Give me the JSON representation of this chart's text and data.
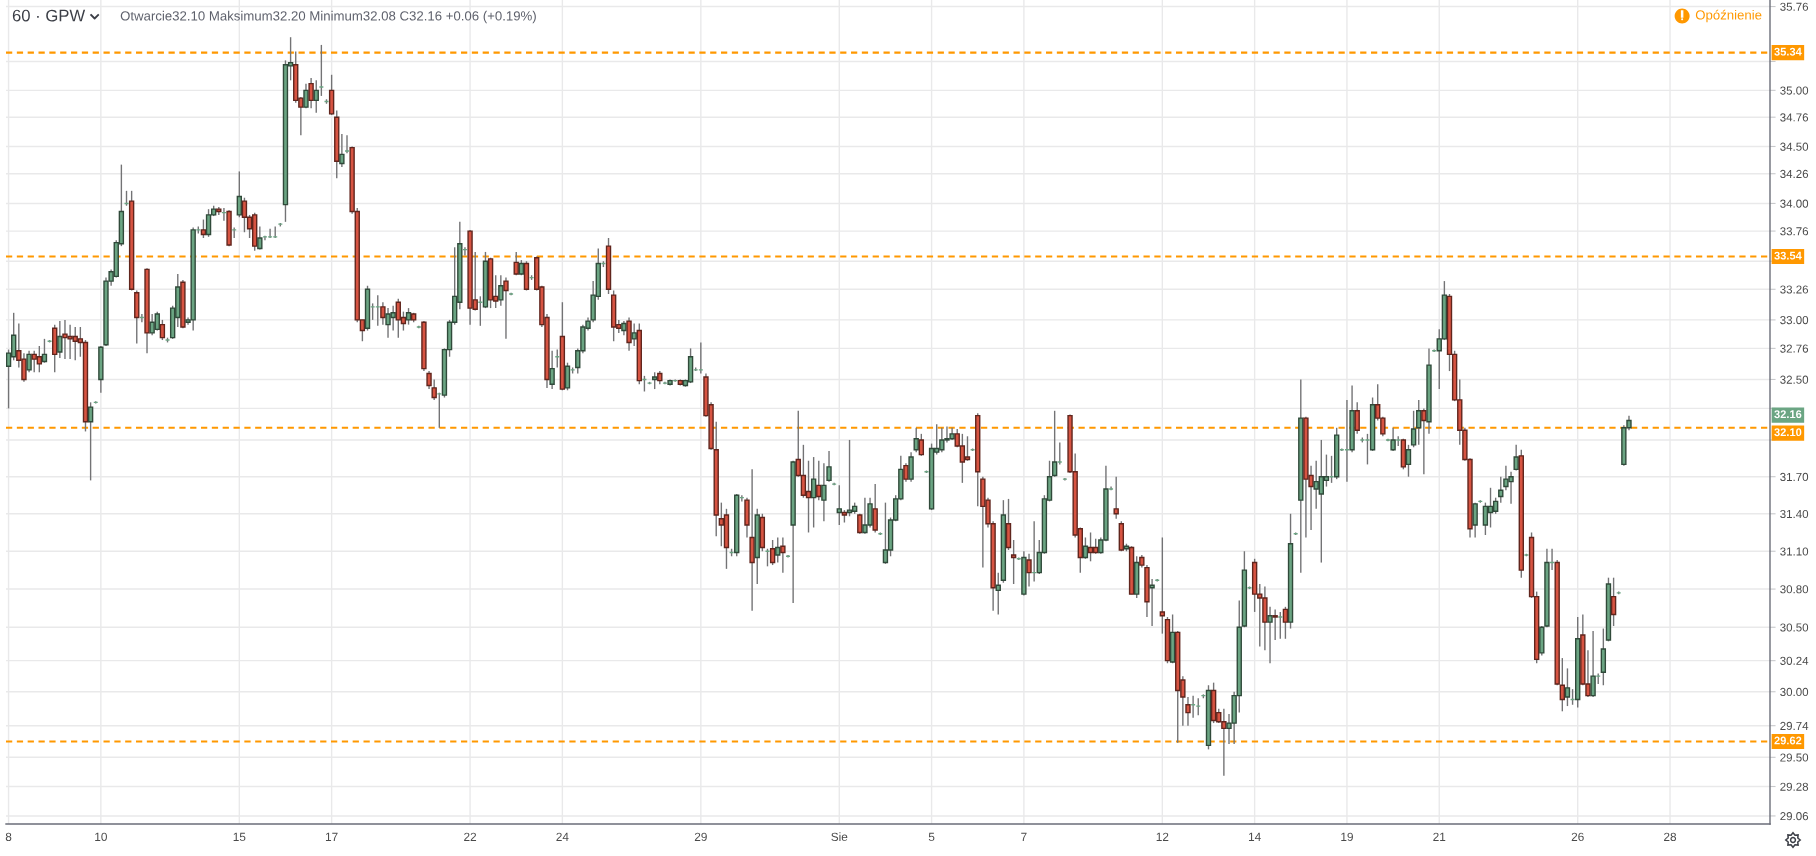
{
  "chart_data": {
    "type": "candlestick",
    "title": "60 · GPW",
    "subtitle": "Otwarcie32.10 Maksimum32.20 Minimum32.08 C32.16 +0.06 (+0.19%)",
    "annotations": [
      "Opóźnienie",
      "32.16"
    ],
    "categories": [
      "8",
      null,
      null,
      null,
      null,
      null,
      null,
      null,
      null,
      null,
      null,
      null,
      null,
      null,
      null,
      null,
      null,
      null,
      "10",
      null,
      null,
      null,
      null,
      null,
      null,
      null,
      null,
      null,
      null,
      null,
      null,
      null,
      null,
      null,
      null,
      null,
      null,
      null,
      null,
      null,
      null,
      null,
      null,
      null,
      null,
      "15",
      null,
      null,
      null,
      null,
      null,
      null,
      null,
      null,
      null,
      null,
      null,
      null,
      null,
      null,
      null,
      null,
      null,
      "17",
      null,
      null,
      null,
      null,
      null,
      null,
      null,
      null,
      null,
      null,
      null,
      null,
      null,
      null,
      null,
      null,
      null,
      null,
      null,
      null,
      null,
      null,
      null,
      null,
      null,
      null,
      "22",
      null,
      null,
      null,
      null,
      null,
      null,
      null,
      null,
      null,
      null,
      null,
      null,
      null,
      null,
      null,
      null,
      null,
      "24",
      null,
      null,
      null,
      null,
      null,
      null,
      null,
      null,
      null,
      null,
      null,
      null,
      null,
      null,
      null,
      null,
      null,
      null,
      null,
      null,
      null,
      null,
      null,
      null,
      null,
      null,
      "29",
      null,
      null,
      null,
      null,
      null,
      null,
      null,
      null,
      null,
      null,
      null,
      null,
      null,
      null,
      null,
      null,
      null,
      null,
      null,
      null,
      null,
      null,
      null,
      null,
      null,
      null,
      "Sie",
      null,
      null,
      null,
      null,
      null,
      null,
      null,
      null,
      null,
      null,
      null,
      null,
      null,
      null,
      null,
      null,
      null,
      "5",
      null,
      null,
      null,
      null,
      null,
      null,
      null,
      null,
      null,
      null,
      null,
      null,
      null,
      null,
      null,
      null,
      null,
      "7",
      null,
      null,
      null,
      null,
      null,
      null,
      null,
      null,
      null,
      null,
      null,
      null,
      null,
      null,
      null,
      null,
      null,
      null,
      null,
      null,
      null,
      null,
      null,
      null,
      null,
      null,
      "12",
      null,
      null,
      null,
      null,
      null,
      null,
      null,
      null,
      null,
      null,
      null,
      null,
      null,
      null,
      null,
      null,
      null,
      "14",
      null,
      null,
      null,
      null,
      null,
      null,
      null,
      null,
      null,
      null,
      null,
      null,
      null,
      null,
      null,
      null,
      null,
      "19",
      null,
      null,
      null,
      null,
      null,
      null,
      null,
      null,
      null,
      null,
      null,
      null,
      null,
      null,
      null,
      null,
      null,
      "21",
      null,
      null,
      null,
      null,
      null,
      null,
      null,
      null,
      null,
      null,
      null,
      null,
      null,
      null,
      null,
      null,
      null,
      null,
      null,
      null,
      null,
      null,
      null,
      null,
      null,
      null,
      "26",
      null,
      null,
      null,
      null,
      null,
      null,
      null,
      null,
      null,
      null,
      null,
      null,
      null,
      null,
      null,
      null,
      null,
      "28",
      null,
      null,
      null,
      null,
      null,
      null,
      null,
      null,
      null,
      null,
      null,
      null,
      null,
      null,
      null,
      null,
      null,
      null,
      null
    ],
    "ohlc": [
      [
        32.61,
        32.75,
        32.26,
        32.72
      ],
      [
        32.69,
        33.06,
        32.66,
        32.87
      ],
      [
        32.74,
        32.97,
        32.6,
        32.66
      ],
      [
        32.67,
        32.72,
        32.48,
        32.5
      ],
      [
        32.58,
        32.74,
        32.56,
        32.71
      ],
      [
        32.71,
        32.74,
        32.56,
        32.67
      ],
      [
        32.69,
        32.78,
        32.56,
        32.63
      ],
      [
        32.65,
        32.84,
        32.64,
        32.71
      ],
      [
        32.82,
        32.83,
        32.81,
        32.82
      ],
      [
        32.93,
        32.96,
        32.56,
        32.71
      ],
      [
        32.73,
        32.99,
        32.68,
        32.86
      ],
      [
        32.88,
        33.0,
        32.67,
        32.85
      ],
      [
        32.86,
        32.96,
        32.67,
        32.84
      ],
      [
        32.86,
        32.94,
        32.66,
        32.82
      ],
      [
        32.84,
        32.94,
        32.69,
        32.81
      ],
      [
        32.81,
        32.83,
        32.07,
        32.15
      ],
      [
        32.15,
        32.31,
        31.67,
        32.27
      ],
      [
        32.31,
        32.32,
        32.3,
        32.31
      ],
      [
        32.5,
        32.78,
        32.39,
        32.77
      ],
      [
        32.79,
        33.36,
        32.78,
        33.33
      ],
      [
        33.33,
        33.43,
        33.29,
        33.41
      ],
      [
        33.37,
        33.68,
        33.36,
        33.66
      ],
      [
        33.65,
        34.34,
        33.63,
        33.93
      ],
      [
        34.0,
        34.11,
        33.98,
        34.0
      ],
      [
        34.02,
        34.11,
        33.25,
        33.26
      ],
      [
        33.23,
        33.25,
        32.8,
        33.02
      ],
      [
        33.02,
        33.05,
        32.98,
        33.02
      ],
      [
        33.43,
        33.44,
        32.72,
        32.89
      ],
      [
        32.89,
        33.05,
        32.87,
        32.98
      ],
      [
        32.92,
        33.07,
        32.91,
        33.05
      ],
      [
        32.96,
        33.0,
        32.83,
        32.85
      ],
      [
        32.83,
        32.85,
        32.81,
        32.83
      ],
      [
        32.85,
        33.12,
        32.84,
        33.1
      ],
      [
        33.02,
        33.39,
        32.94,
        33.28
      ],
      [
        33.32,
        33.34,
        32.93,
        32.94
      ],
      [
        32.98,
        33.02,
        32.96,
        33.0
      ],
      [
        33.0,
        33.79,
        32.91,
        33.77
      ],
      [
        33.77,
        33.8,
        33.74,
        33.77
      ],
      [
        33.77,
        33.86,
        33.7,
        33.73
      ],
      [
        33.73,
        33.95,
        33.71,
        33.9
      ],
      [
        33.9,
        33.98,
        33.89,
        33.95
      ],
      [
        33.95,
        33.97,
        33.9,
        33.93
      ],
      [
        33.92,
        33.96,
        33.85,
        33.92
      ],
      [
        33.93,
        33.94,
        33.63,
        33.64
      ],
      [
        33.77,
        33.79,
        33.7,
        33.77
      ],
      [
        33.9,
        34.28,
        33.88,
        34.06
      ],
      [
        34.02,
        34.05,
        33.75,
        33.88
      ],
      [
        33.88,
        33.9,
        33.7,
        33.78
      ],
      [
        33.9,
        33.92,
        33.59,
        33.63
      ],
      [
        33.61,
        33.8,
        33.6,
        33.7
      ],
      [
        33.71,
        33.72,
        33.68,
        33.71
      ],
      [
        33.71,
        33.78,
        33.7,
        33.71
      ],
      [
        33.71,
        33.8,
        33.7,
        33.71
      ],
      [
        33.82,
        33.83,
        33.8,
        33.82
      ],
      [
        33.99,
        35.27,
        33.84,
        35.23
      ],
      [
        35.22,
        35.48,
        35.09,
        35.25
      ],
      [
        35.23,
        35.35,
        34.89,
        34.91
      ],
      [
        34.93,
        34.94,
        34.6,
        34.85
      ],
      [
        34.85,
        35.06,
        34.84,
        35.0
      ],
      [
        35.06,
        35.11,
        34.84,
        34.91
      ],
      [
        34.91,
        35.09,
        34.8,
        35.0
      ],
      [
        35.03,
        35.41,
        34.95,
        35.03
      ],
      [
        34.9,
        34.92,
        34.88,
        34.9
      ],
      [
        35.0,
        35.14,
        34.78,
        34.79
      ],
      [
        34.76,
        34.82,
        34.22,
        34.37
      ],
      [
        34.35,
        34.61,
        34.32,
        34.43
      ],
      [
        34.46,
        34.6,
        34.44,
        34.46
      ],
      [
        34.49,
        34.5,
        33.91,
        33.93
      ],
      [
        33.93,
        33.96,
        32.98,
        33.0
      ],
      [
        33.0,
        33.0,
        32.82,
        32.91
      ],
      [
        32.93,
        33.29,
        32.91,
        33.26
      ],
      [
        33.11,
        33.14,
        33.0,
        33.11
      ],
      [
        33.11,
        33.21,
        32.95,
        33.11
      ],
      [
        33.11,
        33.15,
        32.96,
        33.02
      ],
      [
        32.96,
        33.1,
        32.85,
        33.05
      ],
      [
        33.02,
        33.12,
        32.91,
        33.06
      ],
      [
        33.15,
        33.18,
        32.85,
        33.0
      ],
      [
        33.02,
        33.07,
        32.91,
        32.97
      ],
      [
        33.0,
        33.1,
        32.96,
        33.06
      ],
      [
        33.05,
        33.06,
        32.98,
        33.0
      ],
      [
        32.94,
        32.95,
        32.93,
        32.94
      ],
      [
        32.98,
        32.99,
        32.57,
        32.59
      ],
      [
        32.55,
        32.57,
        32.42,
        32.45
      ],
      [
        32.43,
        32.5,
        32.33,
        32.35
      ],
      [
        32.38,
        32.39,
        32.1,
        32.38
      ],
      [
        32.37,
        32.76,
        32.35,
        32.75
      ],
      [
        32.75,
        33.0,
        32.69,
        32.98
      ],
      [
        32.98,
        33.62,
        32.96,
        33.2
      ],
      [
        33.15,
        33.84,
        33.09,
        33.65
      ],
      [
        33.6,
        33.62,
        33.55,
        33.6
      ],
      [
        33.76,
        33.77,
        32.96,
        33.1
      ],
      [
        33.17,
        33.58,
        33.08,
        33.09
      ],
      [
        33.15,
        33.2,
        32.95,
        33.15
      ],
      [
        33.11,
        33.58,
        33.1,
        33.5
      ],
      [
        33.52,
        33.53,
        33.1,
        33.17
      ],
      [
        33.2,
        33.38,
        33.1,
        33.16
      ],
      [
        33.17,
        33.38,
        33.12,
        33.29
      ],
      [
        33.33,
        33.36,
        32.84,
        33.25
      ],
      [
        33.22,
        33.23,
        33.21,
        33.22
      ],
      [
        33.49,
        33.58,
        33.38,
        33.39
      ],
      [
        33.39,
        33.51,
        33.38,
        33.48
      ],
      [
        33.48,
        33.5,
        33.25,
        33.26
      ],
      [
        33.36,
        33.38,
        33.34,
        33.36
      ],
      [
        33.53,
        33.54,
        33.25,
        33.26
      ],
      [
        33.28,
        33.29,
        32.94,
        32.96
      ],
      [
        33.02,
        33.05,
        32.43,
        32.5
      ],
      [
        32.46,
        32.74,
        32.42,
        32.59
      ],
      [
        32.69,
        32.75,
        32.6,
        32.69
      ],
      [
        32.86,
        33.15,
        32.41,
        32.42
      ],
      [
        32.43,
        32.64,
        32.41,
        32.61
      ],
      [
        32.58,
        32.6,
        32.55,
        32.58
      ],
      [
        32.6,
        32.76,
        32.55,
        32.74
      ],
      [
        32.74,
        32.96,
        32.72,
        32.94
      ],
      [
        32.93,
        33.02,
        32.91,
        32.99
      ],
      [
        33.0,
        33.33,
        32.98,
        33.21
      ],
      [
        33.2,
        33.61,
        33.17,
        33.48
      ],
      [
        33.48,
        33.5,
        33.45,
        33.48
      ],
      [
        33.63,
        33.7,
        33.22,
        33.26
      ],
      [
        33.21,
        33.25,
        32.82,
        32.94
      ],
      [
        32.96,
        33.0,
        32.89,
        32.93
      ],
      [
        32.91,
        32.99,
        32.87,
        32.97
      ],
      [
        32.99,
        33.02,
        32.74,
        32.81
      ],
      [
        32.84,
        32.97,
        32.78,
        32.89
      ],
      [
        32.91,
        32.97,
        32.46,
        32.49
      ],
      [
        32.5,
        32.53,
        32.4,
        32.5
      ],
      [
        32.47,
        32.48,
        32.46,
        32.47
      ],
      [
        32.5,
        32.56,
        32.42,
        32.52
      ],
      [
        32.55,
        32.57,
        32.46,
        32.49
      ],
      [
        32.47,
        32.48,
        32.46,
        32.47
      ],
      [
        32.46,
        32.5,
        32.45,
        32.49
      ],
      [
        32.49,
        32.5,
        32.48,
        32.49
      ],
      [
        32.49,
        32.5,
        32.45,
        32.46
      ],
      [
        32.45,
        32.5,
        32.44,
        32.49
      ],
      [
        32.48,
        32.76,
        32.47,
        32.69
      ],
      [
        32.58,
        32.6,
        32.57,
        32.58
      ],
      [
        32.58,
        32.81,
        32.55,
        32.58
      ],
      [
        32.52,
        32.55,
        32.19,
        32.2
      ],
      [
        32.29,
        32.31,
        31.92,
        31.93
      ],
      [
        31.92,
        32.15,
        31.22,
        31.39
      ],
      [
        31.36,
        31.49,
        31.14,
        31.31
      ],
      [
        31.39,
        31.44,
        30.96,
        31.13
      ],
      [
        31.09,
        31.12,
        31.06,
        31.09
      ],
      [
        31.09,
        31.56,
        31.06,
        31.55
      ],
      [
        31.53,
        31.55,
        31.5,
        31.53
      ],
      [
        31.51,
        31.53,
        31.21,
        31.31
      ],
      [
        31.21,
        31.76,
        30.63,
        31.01
      ],
      [
        31.05,
        31.44,
        30.84,
        31.39
      ],
      [
        31.37,
        31.4,
        31.1,
        31.13
      ],
      [
        31.1,
        31.12,
        30.98,
        31.1
      ],
      [
        31.12,
        31.19,
        30.99,
        31.01
      ],
      [
        31.07,
        31.21,
        31.01,
        31.13
      ],
      [
        31.14,
        31.21,
        30.93,
        31.09
      ],
      [
        31.06,
        31.07,
        31.05,
        31.06
      ],
      [
        31.31,
        31.83,
        30.69,
        31.82
      ],
      [
        31.84,
        32.24,
        31.7,
        31.71
      ],
      [
        31.71,
        31.96,
        31.53,
        31.55
      ],
      [
        31.58,
        31.83,
        31.25,
        31.53
      ],
      [
        31.53,
        31.86,
        31.29,
        31.68
      ],
      [
        31.63,
        31.83,
        31.51,
        31.54
      ],
      [
        31.51,
        31.81,
        31.34,
        31.63
      ],
      [
        31.67,
        31.91,
        31.66,
        31.78
      ],
      [
        31.64,
        31.65,
        31.63,
        31.64
      ],
      [
        31.41,
        31.63,
        31.31,
        31.44
      ],
      [
        31.41,
        31.43,
        31.33,
        31.39
      ],
      [
        31.41,
        32.0,
        31.38,
        31.43
      ],
      [
        31.42,
        31.49,
        31.4,
        31.46
      ],
      [
        31.39,
        31.4,
        31.24,
        31.25
      ],
      [
        31.25,
        31.53,
        31.24,
        31.31
      ],
      [
        31.31,
        31.53,
        31.29,
        31.48
      ],
      [
        31.44,
        31.64,
        31.25,
        31.27
      ],
      [
        31.24,
        31.25,
        31.23,
        31.24
      ],
      [
        31.01,
        31.49,
        31.0,
        31.11
      ],
      [
        31.11,
        31.37,
        31.06,
        31.35
      ],
      [
        31.35,
        31.55,
        31.34,
        31.52
      ],
      [
        31.52,
        31.87,
        31.51,
        31.76
      ],
      [
        31.79,
        31.81,
        31.66,
        31.68
      ],
      [
        31.68,
        31.9,
        31.66,
        31.86
      ],
      [
        31.92,
        32.1,
        31.9,
        32.01
      ],
      [
        32.0,
        32.05,
        31.87,
        31.88
      ],
      [
        31.74,
        31.75,
        31.73,
        31.74
      ],
      [
        31.44,
        31.97,
        31.43,
        31.93
      ],
      [
        31.9,
        32.13,
        31.88,
        31.93
      ],
      [
        31.92,
        32.1,
        31.9,
        32.0
      ],
      [
        32.0,
        32.11,
        31.98,
        32.01
      ],
      [
        32.01,
        32.1,
        32.0,
        32.05
      ],
      [
        32.05,
        32.09,
        31.94,
        31.95
      ],
      [
        31.95,
        32.05,
        31.65,
        31.82
      ],
      [
        31.86,
        32.03,
        31.83,
        31.84
      ],
      [
        31.92,
        31.93,
        31.91,
        31.92
      ],
      [
        32.2,
        32.22,
        31.46,
        31.74
      ],
      [
        31.68,
        31.7,
        30.97,
        31.46
      ],
      [
        31.51,
        31.53,
        31.29,
        31.32
      ],
      [
        31.32,
        31.34,
        30.63,
        30.81
      ],
      [
        30.79,
        30.93,
        30.6,
        30.83
      ],
      [
        30.87,
        31.51,
        30.85,
        31.39
      ],
      [
        31.32,
        31.52,
        31.11,
        31.13
      ],
      [
        31.07,
        31.19,
        30.84,
        31.05
      ],
      [
        31.04,
        31.05,
        31.03,
        31.04
      ],
      [
        30.76,
        31.1,
        30.75,
        31.05
      ],
      [
        31.03,
        31.08,
        30.82,
        30.93
      ],
      [
        30.93,
        31.34,
        30.86,
        30.93
      ],
      [
        30.93,
        31.19,
        30.92,
        31.09
      ],
      [
        31.09,
        31.55,
        31.08,
        31.52
      ],
      [
        31.51,
        31.83,
        31.5,
        31.7
      ],
      [
        31.71,
        32.24,
        31.7,
        31.82
      ],
      [
        31.82,
        31.98,
        31.8,
        31.82
      ],
      [
        31.68,
        31.69,
        31.67,
        31.68
      ],
      [
        32.2,
        32.21,
        31.73,
        31.74
      ],
      [
        31.74,
        31.89,
        31.21,
        31.23
      ],
      [
        31.28,
        31.29,
        30.93,
        31.05
      ],
      [
        31.05,
        31.21,
        31.04,
        31.14
      ],
      [
        31.13,
        31.25,
        31.02,
        31.09
      ],
      [
        31.13,
        31.2,
        31.08,
        31.09
      ],
      [
        31.09,
        31.21,
        31.08,
        31.19
      ],
      [
        31.19,
        31.79,
        31.18,
        31.6
      ],
      [
        31.6,
        31.62,
        31.59,
        31.6
      ],
      [
        31.44,
        31.7,
        31.36,
        31.4
      ],
      [
        31.32,
        31.34,
        31.1,
        31.11
      ],
      [
        31.12,
        31.16,
        31.1,
        31.14
      ],
      [
        31.13,
        31.14,
        30.76,
        30.76
      ],
      [
        30.76,
        31.06,
        30.73,
        31.01
      ],
      [
        31.05,
        31.07,
        30.97,
        30.99
      ],
      [
        30.97,
        30.99,
        30.58,
        30.7
      ],
      [
        30.81,
        30.88,
        30.51,
        30.83
      ],
      [
        30.87,
        30.88,
        30.86,
        30.87
      ],
      [
        30.62,
        31.21,
        30.45,
        30.59
      ],
      [
        30.56,
        30.58,
        30.22,
        30.24
      ],
      [
        30.23,
        30.6,
        30.22,
        30.46
      ],
      [
        30.46,
        30.47,
        29.61,
        30.01
      ],
      [
        30.09,
        30.12,
        29.74,
        29.96
      ],
      [
        29.9,
        29.96,
        29.74,
        29.84
      ],
      [
        29.9,
        29.97,
        29.8,
        29.9
      ],
      [
        29.89,
        29.95,
        29.82,
        29.89
      ],
      [
        29.97,
        29.98,
        29.95,
        29.97
      ],
      [
        29.59,
        30.05,
        29.56,
        30.01
      ],
      [
        30.01,
        30.07,
        29.76,
        29.78
      ],
      [
        29.84,
        29.87,
        29.76,
        29.77
      ],
      [
        29.77,
        29.87,
        29.36,
        29.72
      ],
      [
        29.72,
        29.83,
        29.6,
        29.76
      ],
      [
        29.76,
        30.0,
        29.6,
        29.97
      ],
      [
        29.97,
        30.71,
        29.84,
        30.5
      ],
      [
        30.51,
        31.1,
        30.5,
        30.95
      ],
      [
        30.81,
        30.82,
        30.8,
        30.81
      ],
      [
        31.01,
        31.04,
        30.62,
        30.76
      ],
      [
        30.76,
        30.84,
        30.35,
        30.73
      ],
      [
        30.73,
        30.82,
        30.32,
        30.54
      ],
      [
        30.54,
        30.66,
        30.22,
        30.59
      ],
      [
        30.59,
        30.64,
        30.4,
        30.58
      ],
      [
        30.58,
        30.62,
        30.41,
        30.58
      ],
      [
        30.64,
        30.66,
        30.41,
        30.54
      ],
      [
        30.54,
        31.4,
        30.49,
        31.16
      ],
      [
        31.24,
        31.25,
        31.23,
        31.24
      ],
      [
        31.51,
        32.5,
        30.93,
        32.18
      ],
      [
        32.18,
        32.19,
        31.21,
        31.68
      ],
      [
        31.71,
        31.79,
        31.27,
        31.62
      ],
      [
        31.6,
        31.83,
        31.44,
        31.66
      ],
      [
        31.56,
        32.0,
        31.01,
        31.7
      ],
      [
        31.67,
        31.88,
        31.62,
        31.7
      ],
      [
        31.7,
        31.87,
        31.65,
        31.7
      ],
      [
        31.7,
        32.1,
        31.68,
        32.04
      ],
      [
        31.92,
        31.93,
        31.91,
        31.92
      ],
      [
        31.92,
        32.33,
        31.66,
        31.92
      ],
      [
        31.92,
        32.45,
        31.9,
        32.24
      ],
      [
        32.24,
        32.31,
        32.05,
        32.08
      ],
      [
        32.0,
        32.02,
        31.98,
        32.0
      ],
      [
        32.0,
        32.05,
        31.8,
        32.0
      ],
      [
        31.92,
        32.35,
        31.91,
        32.29
      ],
      [
        32.29,
        32.46,
        32.16,
        32.18
      ],
      [
        32.18,
        32.19,
        32.03,
        32.05
      ],
      [
        32.0,
        32.01,
        31.99,
        32.0
      ],
      [
        31.92,
        32.1,
        31.91,
        32.0
      ],
      [
        32.0,
        32.03,
        31.95,
        32.0
      ],
      [
        32.0,
        32.01,
        31.76,
        31.78
      ],
      [
        31.8,
        31.96,
        31.7,
        31.92
      ],
      [
        31.96,
        32.24,
        31.94,
        32.09
      ],
      [
        32.1,
        32.33,
        31.96,
        32.24
      ],
      [
        32.24,
        32.26,
        31.72,
        32.16
      ],
      [
        32.15,
        32.76,
        32.05,
        32.62
      ],
      [
        32.74,
        32.75,
        32.73,
        32.74
      ],
      [
        32.74,
        32.92,
        32.42,
        32.84
      ],
      [
        32.84,
        33.33,
        32.83,
        33.21
      ],
      [
        33.2,
        33.22,
        32.57,
        32.71
      ],
      [
        32.71,
        32.74,
        32.32,
        32.33
      ],
      [
        32.33,
        32.5,
        31.96,
        32.08
      ],
      [
        32.08,
        32.1,
        31.83,
        31.84
      ],
      [
        31.84,
        31.85,
        31.21,
        31.28
      ],
      [
        31.31,
        31.49,
        31.21,
        31.48
      ],
      [
        31.5,
        31.51,
        31.49,
        31.5
      ],
      [
        31.31,
        31.49,
        31.23,
        31.46
      ],
      [
        31.41,
        31.61,
        31.29,
        31.46
      ],
      [
        31.42,
        31.53,
        31.4,
        31.5
      ],
      [
        31.54,
        31.7,
        31.49,
        31.59
      ],
      [
        31.62,
        31.79,
        31.59,
        31.68
      ],
      [
        31.66,
        31.74,
        31.48,
        31.7
      ],
      [
        31.76,
        31.96,
        31.75,
        31.86
      ],
      [
        31.87,
        31.92,
        30.89,
        30.95
      ],
      [
        31.07,
        31.08,
        31.06,
        31.07
      ],
      [
        31.21,
        31.25,
        30.73,
        30.74
      ],
      [
        30.74,
        30.78,
        30.22,
        30.25
      ],
      [
        30.3,
        30.51,
        30.28,
        30.5
      ],
      [
        30.51,
        31.12,
        30.5,
        31.01
      ],
      [
        31.01,
        31.12,
        30.95,
        31.01
      ],
      [
        31.01,
        31.03,
        30.05,
        30.06
      ],
      [
        30.05,
        30.26,
        29.85,
        29.94
      ],
      [
        29.96,
        30.18,
        29.89,
        30.03
      ],
      [
        29.94,
        30.02,
        29.9,
        29.94
      ],
      [
        29.94,
        30.58,
        29.88,
        30.41
      ],
      [
        30.44,
        30.6,
        30.05,
        30.06
      ],
      [
        30.06,
        30.32,
        29.96,
        29.97
      ],
      [
        29.97,
        30.47,
        29.96,
        30.12
      ],
      [
        30.12,
        30.14,
        30.06,
        30.12
      ],
      [
        30.15,
        30.49,
        30.05,
        30.33
      ],
      [
        30.4,
        30.89,
        30.39,
        30.84
      ],
      [
        30.74,
        30.89,
        30.51,
        30.6
      ],
      [
        30.77,
        30.78,
        30.76,
        30.77
      ],
      [
        31.8,
        32.12,
        31.79,
        32.1
      ],
      [
        32.1,
        32.2,
        32.08,
        32.16
      ],
      null,
      null,
      null,
      null,
      null,
      null,
      null,
      null,
      null,
      null,
      null,
      null,
      null,
      null,
      null,
      null,
      null,
      null,
      null,
      null,
      null,
      null,
      null,
      null,
      null,
      null,
      null
    ],
    "colors": [
      "#6ba583",
      "#6ba583",
      "#d75442",
      "#d75442",
      "#6ba583",
      "#d75442",
      "#d75442",
      "#6ba583",
      "#6ba583",
      "#d75442",
      "#6ba583",
      "#d75442",
      "#d75442",
      "#d75442",
      "#d75442",
      "#d75442",
      "#6ba583",
      "#6ba583",
      "#6ba583",
      "#6ba583",
      "#6ba583",
      "#6ba583",
      "#6ba583",
      "#6ba583",
      "#d75442",
      "#d75442",
      "#6ba583",
      "#d75442",
      "#6ba583",
      "#6ba583",
      "#d75442",
      "#6ba583",
      "#6ba583",
      "#6ba583",
      "#d75442",
      "#6ba583",
      "#6ba583",
      "#6ba583",
      "#d75442",
      "#6ba583",
      "#6ba583",
      "#d75442",
      "#6ba583",
      "#d75442",
      "#6ba583",
      "#6ba583",
      "#d75442",
      "#d75442",
      "#d75442",
      "#6ba583",
      "#6ba583",
      "#6ba583",
      "#6ba583",
      "#6ba583",
      "#6ba583",
      "#6ba583",
      "#d75442",
      "#d75442",
      "#6ba583",
      "#d75442",
      "#6ba583",
      "#6ba583",
      "#6ba583",
      "#d75442",
      "#d75442",
      "#6ba583",
      "#6ba583",
      "#d75442",
      "#d75442",
      "#d75442",
      "#6ba583",
      "#6ba583",
      "#6ba583",
      "#d75442",
      "#6ba583",
      "#6ba583",
      "#d75442",
      "#d75442",
      "#6ba583",
      "#d75442",
      "#6ba583",
      "#d75442",
      "#d75442",
      "#d75442",
      "#6ba583",
      "#6ba583",
      "#6ba583",
      "#6ba583",
      "#6ba583",
      "#6ba583",
      "#d75442",
      "#d75442",
      "#6ba583",
      "#6ba583",
      "#d75442",
      "#d75442",
      "#6ba583",
      "#d75442",
      "#6ba583",
      "#d75442",
      "#6ba583",
      "#d75442",
      "#6ba583",
      "#d75442",
      "#d75442",
      "#d75442",
      "#6ba583",
      "#6ba583",
      "#d75442",
      "#6ba583",
      "#6ba583",
      "#6ba583",
      "#6ba583",
      "#6ba583",
      "#6ba583",
      "#6ba583",
      "#6ba583",
      "#d75442",
      "#d75442",
      "#d75442",
      "#6ba583",
      "#d75442",
      "#6ba583",
      "#d75442",
      "#6ba583",
      "#6ba583",
      "#6ba583",
      "#d75442",
      "#6ba583",
      "#6ba583",
      "#6ba583",
      "#d75442",
      "#6ba583",
      "#6ba583",
      "#6ba583",
      "#6ba583",
      "#d75442",
      "#d75442",
      "#d75442",
      "#d75442",
      "#d75442",
      "#6ba583",
      "#6ba583",
      "#6ba583",
      "#d75442",
      "#d75442",
      "#6ba583",
      "#d75442",
      "#6ba583",
      "#d75442",
      "#6ba583",
      "#d75442",
      "#6ba583",
      "#6ba583",
      "#d75442",
      "#d75442",
      "#d75442",
      "#6ba583",
      "#d75442",
      "#6ba583",
      "#6ba583",
      "#6ba583",
      "#6ba583",
      "#d75442",
      "#6ba583",
      "#6ba583",
      "#d75442",
      "#6ba583",
      "#6ba583",
      "#d75442",
      "#6ba583",
      "#6ba583",
      "#6ba583",
      "#6ba583",
      "#6ba583",
      "#d75442",
      "#6ba583",
      "#6ba583",
      "#d75442",
      "#6ba583",
      "#6ba583",
      "#6ba583",
      "#6ba583",
      "#6ba583",
      "#6ba583",
      "#d75442",
      "#d75442",
      "#d75442",
      "#6ba583",
      "#d75442",
      "#d75442",
      "#d75442",
      "#d75442",
      "#6ba583",
      "#6ba583",
      "#d75442",
      "#d75442",
      "#6ba583",
      "#6ba583",
      "#d75442",
      "#6ba583",
      "#6ba583",
      "#6ba583",
      "#6ba583",
      "#6ba583",
      "#6ba583",
      "#6ba583",
      "#d75442",
      "#d75442",
      "#d75442",
      "#6ba583",
      "#d75442",
      "#d75442",
      "#6ba583",
      "#6ba583",
      "#6ba583",
      "#d75442",
      "#d75442",
      "#6ba583",
      "#d75442",
      "#6ba583",
      "#d75442",
      "#d75442",
      "#6ba583",
      "#6ba583",
      "#d75442",
      "#d75442",
      "#6ba583",
      "#d75442",
      "#d75442",
      "#d75442",
      "#6ba583",
      "#6ba583",
      "#6ba583",
      "#6ba583",
      "#d75442",
      "#d75442",
      "#d75442",
      "#6ba583",
      "#6ba583",
      "#6ba583",
      "#6ba583",
      "#6ba583",
      "#d75442",
      "#d75442",
      "#d75442",
      "#6ba583",
      "#d75442",
      "#6ba583",
      "#d75442",
      "#6ba583",
      "#6ba583",
      "#6ba583",
      "#d75442",
      "#d75442",
      "#6ba583",
      "#6ba583",
      "#6ba583",
      "#6ba583",
      "#6ba583",
      "#6ba583",
      "#6ba583",
      "#6ba583",
      "#d75442",
      "#6ba583",
      "#6ba583",
      "#6ba583",
      "#d75442",
      "#d75442",
      "#6ba583",
      "#6ba583",
      "#6ba583",
      "#d75442",
      "#6ba583",
      "#6ba583",
      "#6ba583",
      "#d75442",
      "#6ba583",
      "#6ba583",
      "#6ba583",
      "#6ba583",
      "#d75442",
      "#d75442",
      "#d75442",
      "#d75442",
      "#d75442",
      "#6ba583",
      "#6ba583",
      "#6ba583",
      "#6ba583",
      "#6ba583",
      "#6ba583",
      "#6ba583",
      "#6ba583",
      "#6ba583",
      "#d75442",
      "#6ba583",
      "#d75442",
      "#d75442",
      "#6ba583",
      "#6ba583",
      "#6ba583",
      "#d75442",
      "#d75442",
      "#6ba583",
      "#6ba583",
      "#6ba583",
      "#d75442",
      "#d75442",
      "#6ba583",
      "#6ba583",
      "#6ba583",
      "#6ba583",
      "#d75442",
      "#6ba583",
      "#6ba583",
      "#6ba583",
      null,
      null,
      null,
      null,
      null,
      null,
      null,
      null,
      null,
      null,
      null,
      null,
      null,
      null,
      null,
      null,
      null,
      null,
      null,
      null,
      null,
      null,
      null,
      null,
      null,
      null,
      null
    ],
    "log": true,
    "ylim": [
      29.0,
      35.82
    ],
    "yticks": [
      29.06,
      29.28,
      {
        "value": 29.5,
        "label": "29.50"
      },
      29.74,
      {
        "value": 30,
        "label": "30.00"
      },
      30.24,
      {
        "value": 30.5,
        "label": "30.50"
      },
      {
        "value": 30.8,
        "label": "30.80"
      },
      {
        "value": 31.1,
        "label": "31.10"
      },
      {
        "value": 31.4,
        "label": "31.40"
      },
      {
        "value": 31.7,
        "label": "31.70"
      },
      {
        "value": 32,
        "label": null
      },
      {
        "value": 32.26,
        "label": null
      },
      {
        "value": 32.5,
        "label": "32.50"
      },
      32.76,
      {
        "value": 33,
        "label": "33.00"
      },
      33.26,
      {
        "value": 33.5,
        "label": null
      },
      33.76,
      {
        "value": 34,
        "label": "34.00"
      },
      34.26,
      {
        "value": 34.5,
        "label": "34.50"
      },
      34.76,
      {
        "value": 35,
        "label": "35.00"
      },
      {
        "value": 35.26,
        "label": null
      },
      35.76
    ],
    "grid": true,
    "ref_lines": [
      {
        "axis": "y",
        "value": 35.34,
        "label": "35.34",
        "color": "#ff9800",
        "line_style": "dashed"
      },
      {
        "axis": "y",
        "value": 33.54,
        "label": "33.54",
        "color": "#ff9800",
        "line_style": "dashed"
      },
      {
        "axis": "y",
        "value": 32.1,
        "label": "32.10",
        "color": "#ff9800",
        "line_style": "dashed"
      },
      {
        "axis": "y",
        "value": 29.62,
        "label": "29.62",
        "color": "#ff9800",
        "line_style": "dashed"
      }
    ]
  }
}
